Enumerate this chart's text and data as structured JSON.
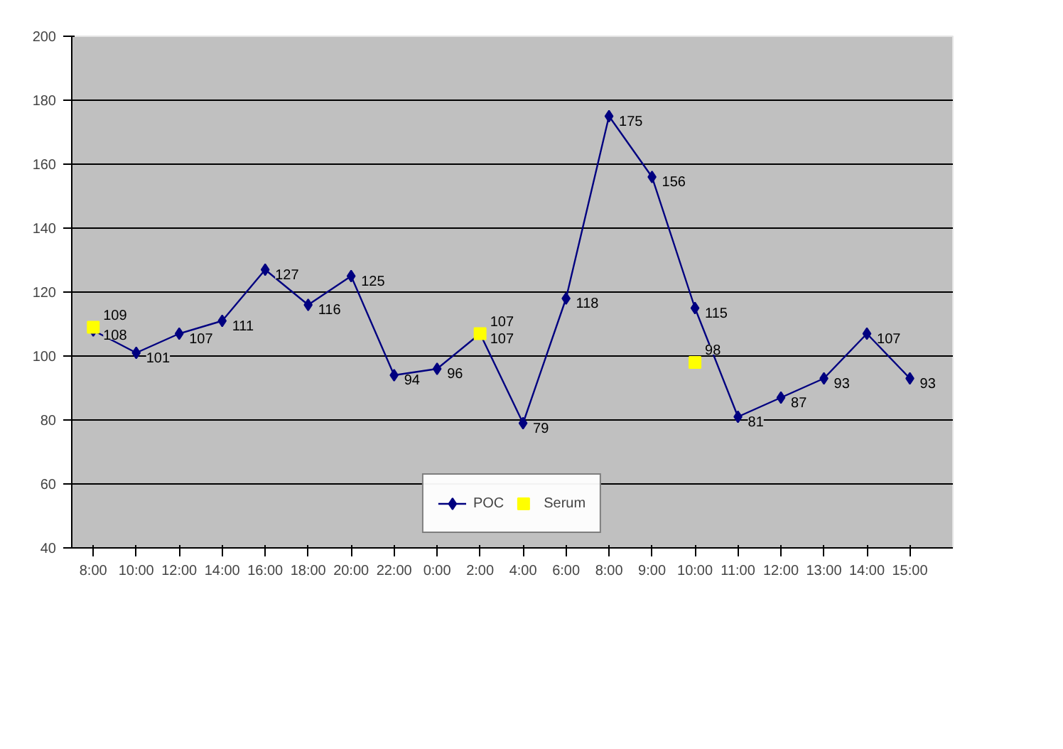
{
  "chart_data": {
    "type": "line",
    "categories": [
      "8:00",
      "10:00",
      "12:00",
      "14:00",
      "16:00",
      "18:00",
      "20:00",
      "22:00",
      "0:00",
      "2:00",
      "4:00",
      "6:00",
      "8:00",
      "9:00",
      "10:00",
      "11:00",
      "12:00",
      "13:00",
      "14:00",
      "15:00"
    ],
    "series": [
      {
        "name": "POC",
        "color": "#000080",
        "marker": "diamond",
        "values": [
          108,
          101,
          107,
          111,
          127,
          116,
          125,
          94,
          96,
          107,
          79,
          118,
          175,
          156,
          115,
          81,
          87,
          93,
          107,
          93
        ]
      },
      {
        "name": "Serum",
        "type": "scatter",
        "color": "#ffff00",
        "marker": "square",
        "values": [
          109,
          null,
          null,
          null,
          null,
          null,
          null,
          null,
          null,
          107,
          null,
          null,
          null,
          null,
          98,
          null,
          null,
          null,
          null,
          null
        ]
      }
    ],
    "ylim": [
      40,
      200
    ],
    "yticks": [
      40,
      60,
      80,
      100,
      120,
      140,
      160,
      180,
      200
    ],
    "grid": "y",
    "legend": "bottom",
    "data_labels": true
  }
}
